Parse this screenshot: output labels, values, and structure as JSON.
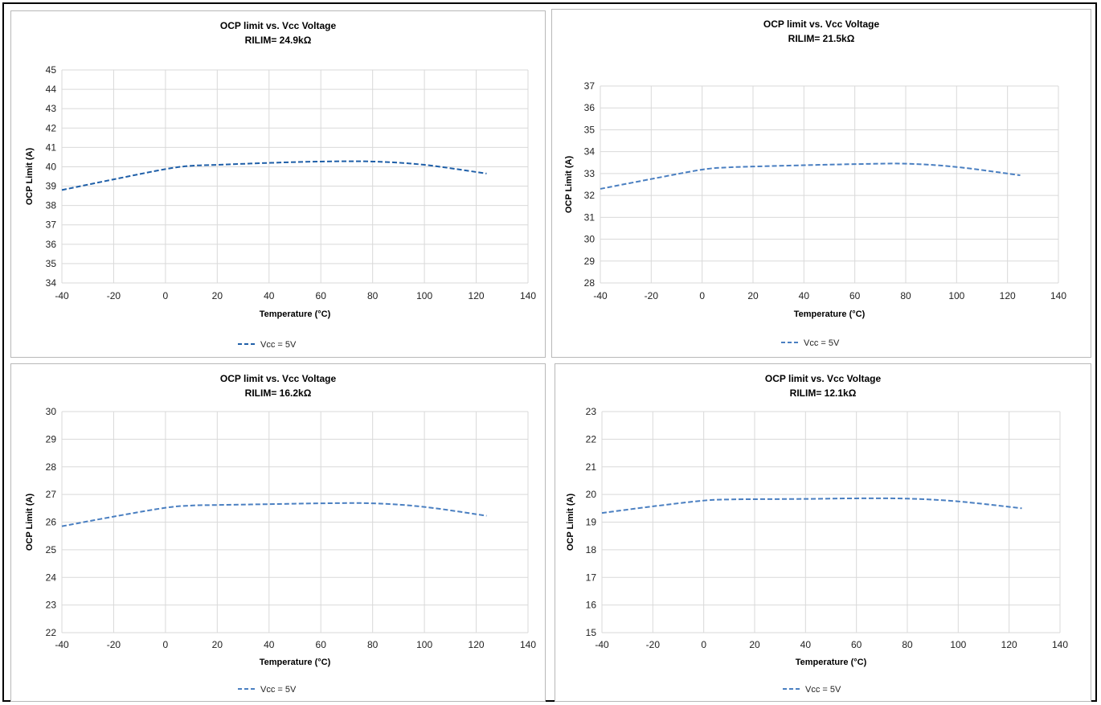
{
  "chart_data": [
    {
      "type": "line",
      "title": "OCP limit vs. Vcc Voltage",
      "subtitle": "RILIM= 24.9kΩ",
      "xlabel": "Temperature (°C)",
      "ylabel": "OCP Limit (A)",
      "xlim": [
        -40,
        140
      ],
      "ylim": [
        34,
        45
      ],
      "xticks": [
        "-40",
        "-20",
        "0",
        "20",
        "40",
        "60",
        "80",
        "100",
        "120",
        "140"
      ],
      "yticks": [
        "34",
        "35",
        "36",
        "37",
        "38",
        "39",
        "40",
        "41",
        "42",
        "43",
        "44",
        "45"
      ],
      "grid": true,
      "legend_position": "bottom",
      "color": "#1f5fa8",
      "series": [
        {
          "name": "Vcc = 5V",
          "x": [
            -40,
            -20,
            0,
            10,
            20,
            40,
            60,
            80,
            100,
            124
          ],
          "y": [
            38.8,
            39.35,
            39.88,
            40.05,
            40.1,
            40.2,
            40.27,
            40.27,
            40.1,
            39.65
          ]
        }
      ]
    },
    {
      "type": "line",
      "title": "OCP limit vs. Vcc Voltage",
      "subtitle": "RILIM= 21.5kΩ",
      "xlabel": "Temperature (°C)",
      "ylabel": "OCP Limit (A)",
      "xlim": [
        -40,
        140
      ],
      "ylim": [
        28,
        37
      ],
      "xticks": [
        "-40",
        "-20",
        "0",
        "20",
        "40",
        "60",
        "80",
        "100",
        "120",
        "140"
      ],
      "yticks": [
        "28",
        "29",
        "30",
        "31",
        "32",
        "33",
        "34",
        "35",
        "36",
        "37"
      ],
      "grid": true,
      "legend_position": "bottom",
      "color": "#4a7fc1",
      "series": [
        {
          "name": "Vcc = 5V",
          "x": [
            -40,
            -20,
            0,
            10,
            20,
            40,
            60,
            80,
            100,
            125
          ],
          "y": [
            32.3,
            32.75,
            33.18,
            33.28,
            33.32,
            33.38,
            33.43,
            33.45,
            33.3,
            32.92
          ]
        }
      ]
    },
    {
      "type": "line",
      "title": "OCP limit vs. Vcc Voltage",
      "subtitle": "RILIM= 16.2kΩ",
      "xlabel": "Temperature (°C)",
      "ylabel": "OCP Limit (A)",
      "xlim": [
        -40,
        140
      ],
      "ylim": [
        22,
        30
      ],
      "xticks": [
        "-40",
        "-20",
        "0",
        "20",
        "40",
        "60",
        "80",
        "100",
        "120",
        "140"
      ],
      "yticks": [
        "22",
        "23",
        "24",
        "25",
        "26",
        "27",
        "28",
        "29",
        "30"
      ],
      "grid": true,
      "legend_position": "bottom",
      "color": "#4a7fc1",
      "series": [
        {
          "name": "Vcc = 5V",
          "x": [
            -40,
            -20,
            0,
            10,
            20,
            40,
            60,
            80,
            100,
            124
          ],
          "y": [
            25.85,
            26.2,
            26.52,
            26.6,
            26.62,
            26.65,
            26.68,
            26.68,
            26.55,
            26.23
          ]
        }
      ]
    },
    {
      "type": "line",
      "title": "OCP limit vs. Vcc Voltage",
      "subtitle": "RILIM= 12.1kΩ",
      "xlabel": "Temperature (°C)",
      "ylabel": "OCP Limit (A)",
      "xlim": [
        -40,
        140
      ],
      "ylim": [
        15,
        23
      ],
      "xticks": [
        "-40",
        "-20",
        "0",
        "20",
        "40",
        "60",
        "80",
        "100",
        "120",
        "140"
      ],
      "yticks": [
        "15",
        "16",
        "17",
        "18",
        "19",
        "20",
        "21",
        "22",
        "23"
      ],
      "grid": true,
      "legend_position": "bottom",
      "color": "#4a7fc1",
      "series": [
        {
          "name": "Vcc = 5V",
          "x": [
            -40,
            -20,
            0,
            10,
            20,
            40,
            60,
            80,
            100,
            125
          ],
          "y": [
            19.33,
            19.57,
            19.78,
            19.82,
            19.83,
            19.84,
            19.86,
            19.85,
            19.75,
            19.5
          ]
        }
      ]
    }
  ]
}
